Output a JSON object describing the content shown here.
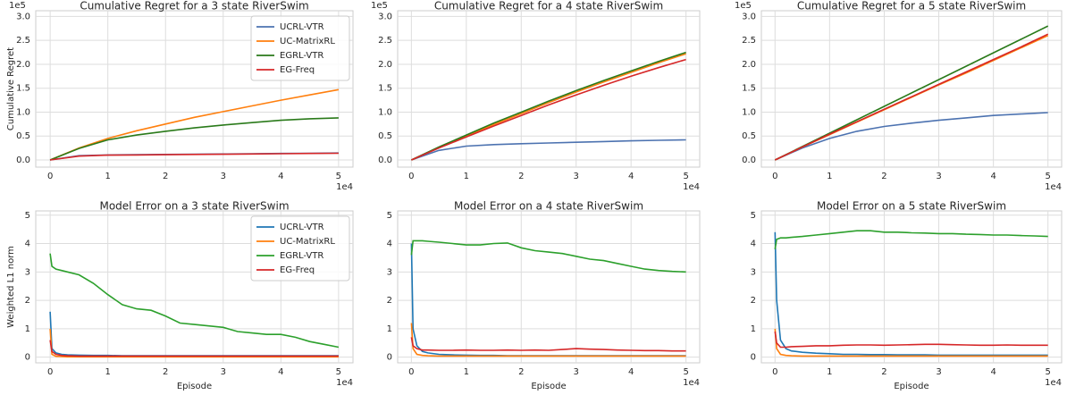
{
  "chart_data": [
    {
      "type": "line",
      "title": "Cumulative Regret for a 3 state RiverSwim",
      "ylabel": "Cumulative Regret",
      "y_offset_label": "1e5",
      "x_offset_label": "1e4",
      "legend": "upper right",
      "grid": true,
      "x": [
        0,
        5000,
        10000,
        15000,
        20000,
        25000,
        30000,
        35000,
        40000,
        45000,
        50000
      ],
      "series": [
        {
          "name": "UCRL-VTR",
          "color": "#4c72b0",
          "values": [
            0,
            9000,
            10500,
            11000,
            11500,
            12000,
            12500,
            13000,
            13500,
            14000,
            14500
          ]
        },
        {
          "name": "UC-MatrixRL",
          "color": "#ff7f0e",
          "values": [
            0,
            25000,
            45000,
            61000,
            75000,
            89000,
            101000,
            113000,
            125000,
            136000,
            147000
          ]
        },
        {
          "name": "EGRL-VTR",
          "color": "#2a7a1a",
          "values": [
            0,
            24000,
            42000,
            52000,
            60000,
            67000,
            73000,
            78000,
            83000,
            86000,
            88000
          ]
        },
        {
          "name": "EG-Freq",
          "color": "#d62728",
          "values": [
            0,
            8000,
            10000,
            10500,
            11000,
            11500,
            12000,
            12500,
            13000,
            13500,
            14000
          ]
        }
      ],
      "xlim": [
        -2500,
        52500
      ],
      "ylim": [
        -15000,
        312000
      ],
      "xticks": [
        {
          "value": 0,
          "label": "0"
        },
        {
          "value": 10000,
          "label": "1"
        },
        {
          "value": 20000,
          "label": "2"
        },
        {
          "value": 30000,
          "label": "3"
        },
        {
          "value": 40000,
          "label": "4"
        },
        {
          "value": 50000,
          "label": "5"
        }
      ],
      "yticks": [
        {
          "value": 0,
          "label": "0.0"
        },
        {
          "value": 50000,
          "label": "0.5"
        },
        {
          "value": 100000,
          "label": "1.0"
        },
        {
          "value": 150000,
          "label": "1.5"
        },
        {
          "value": 200000,
          "label": "2.0"
        },
        {
          "value": 250000,
          "label": "2.5"
        },
        {
          "value": 300000,
          "label": "3.0"
        }
      ]
    },
    {
      "type": "line",
      "title": "Cumulative Regret for a 4 state RiverSwim",
      "y_offset_label": "1e5",
      "x_offset_label": "1e4",
      "grid": true,
      "x": [
        0,
        5000,
        10000,
        15000,
        20000,
        25000,
        30000,
        35000,
        40000,
        45000,
        50000
      ],
      "series": [
        {
          "color": "#4c72b0",
          "values": [
            0,
            20000,
            29000,
            32000,
            34000,
            35500,
            37000,
            38500,
            40000,
            41000,
            42000
          ]
        },
        {
          "color": "#ff7f0e",
          "values": [
            0,
            26000,
            50000,
            74000,
            97000,
            120000,
            142000,
            163000,
            183000,
            203000,
            222000
          ]
        },
        {
          "color": "#2a7a1a",
          "values": [
            0,
            27000,
            52000,
            77000,
            100000,
            123000,
            145000,
            166000,
            186000,
            206000,
            225000
          ]
        },
        {
          "color": "#d62728",
          "values": [
            0,
            25000,
            48000,
            71000,
            93000,
            115000,
            136000,
            156000,
            175000,
            193000,
            210000
          ]
        }
      ],
      "xlim": [
        -2500,
        52500
      ],
      "ylim": [
        -15000,
        312000
      ],
      "xticks": [
        {
          "value": 0,
          "label": "0"
        },
        {
          "value": 10000,
          "label": "1"
        },
        {
          "value": 20000,
          "label": "2"
        },
        {
          "value": 30000,
          "label": "3"
        },
        {
          "value": 40000,
          "label": "4"
        },
        {
          "value": 50000,
          "label": "5"
        }
      ],
      "yticks": [
        {
          "value": 0,
          "label": "0.0"
        },
        {
          "value": 50000,
          "label": "0.5"
        },
        {
          "value": 100000,
          "label": "1.0"
        },
        {
          "value": 150000,
          "label": "1.5"
        },
        {
          "value": 200000,
          "label": "2.0"
        },
        {
          "value": 250000,
          "label": "2.5"
        },
        {
          "value": 300000,
          "label": "3.0"
        }
      ]
    },
    {
      "type": "line",
      "title": "Cumulative Regret for a 5 state RiverSwim",
      "y_offset_label": "1e5",
      "x_offset_label": "1e4",
      "grid": true,
      "x": [
        0,
        5000,
        10000,
        15000,
        20000,
        25000,
        30000,
        35000,
        40000,
        45000,
        50000
      ],
      "series": [
        {
          "color": "#4c72b0",
          "values": [
            0,
            25000,
            45000,
            60000,
            70000,
            77000,
            83000,
            88000,
            93000,
            96000,
            99000
          ]
        },
        {
          "color": "#ff7f0e",
          "values": [
            0,
            27000,
            53000,
            79000,
            105000,
            131000,
            157000,
            182000,
            208000,
            234000,
            260000
          ]
        },
        {
          "color": "#2a7a1a",
          "values": [
            0,
            28000,
            56000,
            84000,
            112000,
            140000,
            168000,
            196000,
            224000,
            252000,
            280000
          ]
        },
        {
          "color": "#d62728",
          "values": [
            0,
            27000,
            54000,
            80000,
            106000,
            132000,
            158000,
            184000,
            210000,
            236000,
            263000
          ]
        }
      ],
      "xlim": [
        -2500,
        52500
      ],
      "ylim": [
        -15000,
        312000
      ],
      "xticks": [
        {
          "value": 0,
          "label": "0"
        },
        {
          "value": 10000,
          "label": "1"
        },
        {
          "value": 20000,
          "label": "2"
        },
        {
          "value": 30000,
          "label": "3"
        },
        {
          "value": 40000,
          "label": "4"
        },
        {
          "value": 50000,
          "label": "5"
        }
      ],
      "yticks": [
        {
          "value": 0,
          "label": "0.0"
        },
        {
          "value": 50000,
          "label": "0.5"
        },
        {
          "value": 100000,
          "label": "1.0"
        },
        {
          "value": 150000,
          "label": "1.5"
        },
        {
          "value": 200000,
          "label": "2.0"
        },
        {
          "value": 250000,
          "label": "2.5"
        },
        {
          "value": 300000,
          "label": "3.0"
        }
      ]
    },
    {
      "type": "line",
      "title": "Model Error on a 3 state RiverSwim",
      "ylabel": "Weighted L1 norm",
      "xlabel": "Episode",
      "x_offset_label": "1e4",
      "legend": "upper right",
      "grid": true,
      "x": [
        0,
        300,
        1000,
        2000,
        3000,
        5000,
        7500,
        10000,
        12500,
        15000,
        17500,
        20000,
        22500,
        25000,
        27500,
        30000,
        32500,
        35000,
        37500,
        40000,
        42500,
        45000,
        47500,
        50000
      ],
      "series": [
        {
          "name": "UCRL-VTR",
          "color": "#1f77b4",
          "values": [
            1.6,
            0.3,
            0.15,
            0.1,
            0.08,
            0.07,
            0.06,
            0.06,
            0.05,
            0.05,
            0.05,
            0.05,
            0.05,
            0.05,
            0.05,
            0.05,
            0.05,
            0.05,
            0.05,
            0.05,
            0.05,
            0.05,
            0.05,
            0.05
          ]
        },
        {
          "name": "UC-MatrixRL",
          "color": "#ff7f0e",
          "values": [
            1.0,
            0.1,
            0.03,
            0.02,
            0.01,
            0.01,
            0.01,
            0.01,
            0.01,
            0.01,
            0.01,
            0.01,
            0.01,
            0.01,
            0.01,
            0.01,
            0.01,
            0.01,
            0.01,
            0.01,
            0.01,
            0.01,
            0.01,
            0.01
          ]
        },
        {
          "name": "EGRL-VTR",
          "color": "#2ca02c",
          "values": [
            3.65,
            3.2,
            3.1,
            3.05,
            3.0,
            2.9,
            2.6,
            2.2,
            1.85,
            1.7,
            1.65,
            1.45,
            1.2,
            1.15,
            1.1,
            1.05,
            0.9,
            0.85,
            0.8,
            0.8,
            0.7,
            0.55,
            0.45,
            0.35
          ]
        },
        {
          "name": "EG-Freq",
          "color": "#d62728",
          "values": [
            0.6,
            0.2,
            0.1,
            0.06,
            0.05,
            0.04,
            0.04,
            0.04,
            0.04,
            0.04,
            0.04,
            0.04,
            0.04,
            0.04,
            0.04,
            0.04,
            0.04,
            0.04,
            0.04,
            0.04,
            0.04,
            0.04,
            0.04,
            0.04
          ]
        }
      ],
      "xlim": [
        -2500,
        52500
      ],
      "ylim": [
        -0.2,
        5.15
      ],
      "xticks": [
        {
          "value": 0,
          "label": "0"
        },
        {
          "value": 10000,
          "label": "1"
        },
        {
          "value": 20000,
          "label": "2"
        },
        {
          "value": 30000,
          "label": "3"
        },
        {
          "value": 40000,
          "label": "4"
        },
        {
          "value": 50000,
          "label": "5"
        }
      ],
      "yticks": [
        0,
        1,
        2,
        3,
        4,
        5
      ]
    },
    {
      "type": "line",
      "title": "Model Error on a 4 state RiverSwim",
      "xlabel": "Episode",
      "x_offset_label": "1e4",
      "grid": true,
      "x": [
        0,
        300,
        1000,
        2000,
        3000,
        5000,
        7500,
        10000,
        12500,
        15000,
        17500,
        20000,
        22500,
        25000,
        27500,
        30000,
        32500,
        35000,
        37500,
        40000,
        42500,
        45000,
        47500,
        50000
      ],
      "series": [
        {
          "color": "#1f77b4",
          "values": [
            4.0,
            1.0,
            0.4,
            0.2,
            0.15,
            0.1,
            0.08,
            0.07,
            0.06,
            0.06,
            0.05,
            0.05,
            0.05,
            0.05,
            0.05,
            0.05,
            0.05,
            0.05,
            0.05,
            0.05,
            0.05,
            0.05,
            0.05,
            0.05
          ]
        },
        {
          "color": "#ff7f0e",
          "values": [
            1.2,
            0.3,
            0.1,
            0.06,
            0.05,
            0.04,
            0.04,
            0.04,
            0.04,
            0.04,
            0.04,
            0.04,
            0.04,
            0.04,
            0.04,
            0.04,
            0.04,
            0.04,
            0.04,
            0.04,
            0.04,
            0.04,
            0.04,
            0.04
          ]
        },
        {
          "color": "#2ca02c",
          "values": [
            3.6,
            4.1,
            4.1,
            4.1,
            4.08,
            4.05,
            4.0,
            3.95,
            3.95,
            4.0,
            4.02,
            3.85,
            3.75,
            3.7,
            3.65,
            3.55,
            3.45,
            3.4,
            3.3,
            3.2,
            3.1,
            3.05,
            3.02,
            3.0
          ]
        },
        {
          "color": "#d62728",
          "values": [
            0.7,
            0.4,
            0.3,
            0.25,
            0.25,
            0.24,
            0.24,
            0.25,
            0.24,
            0.24,
            0.25,
            0.24,
            0.25,
            0.24,
            0.27,
            0.3,
            0.28,
            0.27,
            0.25,
            0.24,
            0.23,
            0.23,
            0.22,
            0.22
          ]
        }
      ],
      "xlim": [
        -2500,
        52500
      ],
      "ylim": [
        -0.2,
        5.15
      ],
      "xticks": [
        {
          "value": 0,
          "label": "0"
        },
        {
          "value": 10000,
          "label": "1"
        },
        {
          "value": 20000,
          "label": "2"
        },
        {
          "value": 30000,
          "label": "3"
        },
        {
          "value": 40000,
          "label": "4"
        },
        {
          "value": 50000,
          "label": "5"
        }
      ],
      "yticks": [
        0,
        1,
        2,
        3,
        4,
        5
      ]
    },
    {
      "type": "line",
      "title": "Model Error on a 5 state RiverSwim",
      "xlabel": "Episode",
      "x_offset_label": "1e4",
      "grid": true,
      "x": [
        0,
        300,
        1000,
        2000,
        3000,
        5000,
        7500,
        10000,
        12500,
        15000,
        17500,
        20000,
        22500,
        25000,
        27500,
        30000,
        32500,
        35000,
        37500,
        40000,
        42500,
        45000,
        47500,
        50000
      ],
      "series": [
        {
          "color": "#1f77b4",
          "values": [
            4.4,
            2.0,
            0.6,
            0.3,
            0.22,
            0.17,
            0.14,
            0.12,
            0.1,
            0.1,
            0.09,
            0.09,
            0.08,
            0.08,
            0.08,
            0.07,
            0.07,
            0.07,
            0.07,
            0.07,
            0.07,
            0.07,
            0.07,
            0.07
          ]
        },
        {
          "color": "#ff7f0e",
          "values": [
            1.0,
            0.3,
            0.1,
            0.06,
            0.05,
            0.04,
            0.04,
            0.04,
            0.04,
            0.04,
            0.04,
            0.04,
            0.04,
            0.04,
            0.04,
            0.04,
            0.04,
            0.04,
            0.04,
            0.04,
            0.04,
            0.04,
            0.04,
            0.04
          ]
        },
        {
          "color": "#2ca02c",
          "values": [
            3.8,
            4.15,
            4.2,
            4.2,
            4.22,
            4.25,
            4.3,
            4.35,
            4.4,
            4.45,
            4.45,
            4.4,
            4.4,
            4.38,
            4.37,
            4.35,
            4.35,
            4.33,
            4.32,
            4.3,
            4.3,
            4.28,
            4.27,
            4.25
          ]
        },
        {
          "color": "#d62728",
          "values": [
            0.9,
            0.5,
            0.35,
            0.35,
            0.37,
            0.38,
            0.4,
            0.4,
            0.42,
            0.43,
            0.43,
            0.42,
            0.43,
            0.44,
            0.45,
            0.45,
            0.44,
            0.43,
            0.42,
            0.42,
            0.43,
            0.42,
            0.42,
            0.42
          ]
        }
      ],
      "xlim": [
        -2500,
        52500
      ],
      "ylim": [
        -0.2,
        5.15
      ],
      "xticks": [
        {
          "value": 0,
          "label": "0"
        },
        {
          "value": 10000,
          "label": "1"
        },
        {
          "value": 20000,
          "label": "2"
        },
        {
          "value": 30000,
          "label": "3"
        },
        {
          "value": 40000,
          "label": "4"
        },
        {
          "value": 50000,
          "label": "5"
        }
      ],
      "yticks": [
        0,
        1,
        2,
        3,
        4,
        5
      ]
    }
  ]
}
